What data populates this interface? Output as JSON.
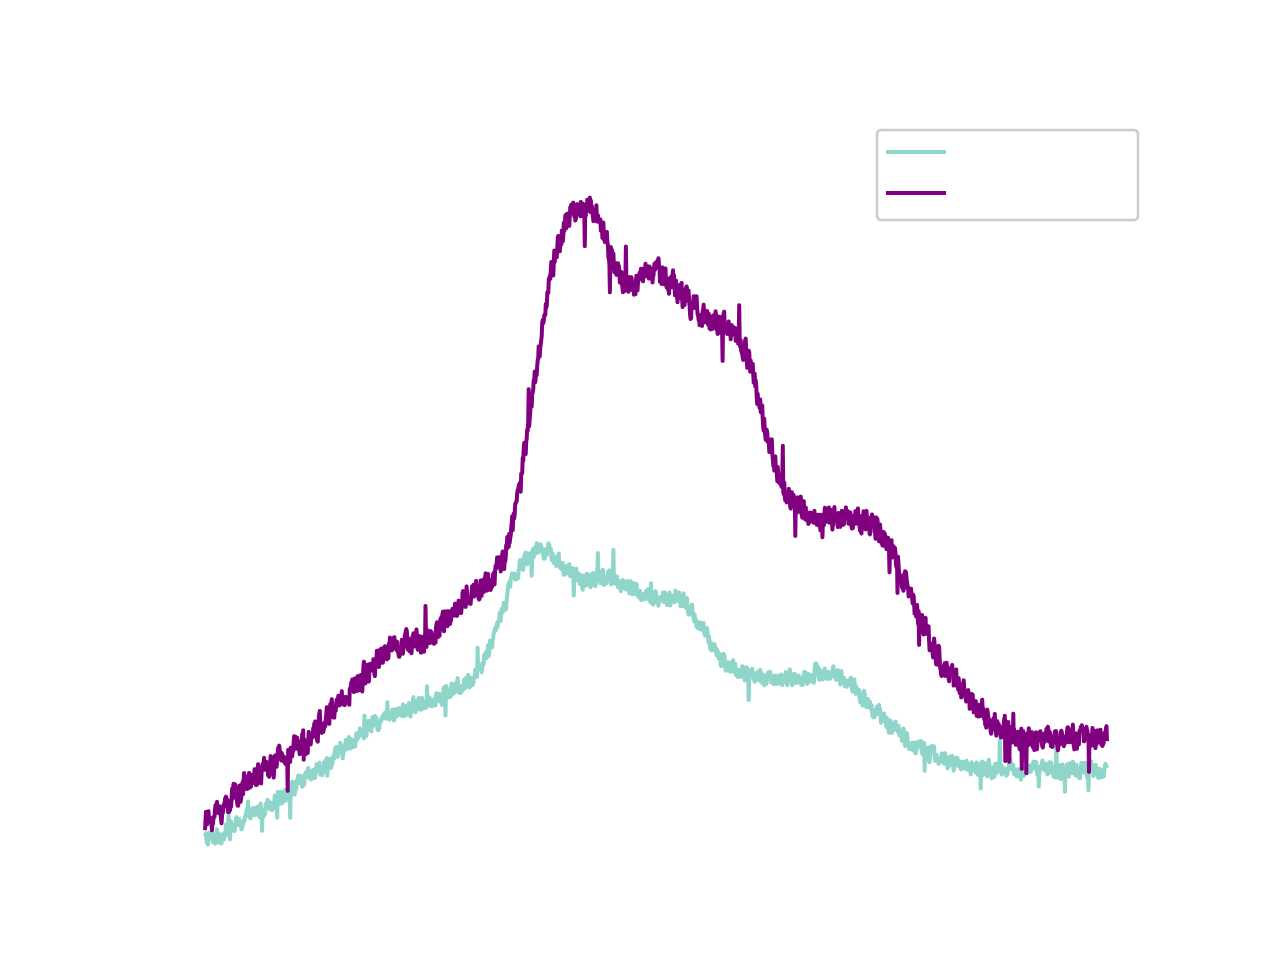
{
  "chart_data": {
    "type": "line",
    "title": "",
    "xlabel": "",
    "ylabel": "",
    "axes_visible": false,
    "grid": false,
    "legend_placement": "top-right",
    "xlim": [
      0,
      100
    ],
    "ylim": [
      0,
      100
    ],
    "x": [
      0,
      1,
      2,
      3,
      4,
      5,
      6,
      7,
      8,
      9,
      10,
      11,
      12,
      13,
      14,
      15,
      16,
      17,
      18,
      19,
      20,
      21,
      22,
      23,
      24,
      25,
      26,
      27,
      28,
      29,
      30,
      31,
      32,
      33,
      34,
      35,
      36,
      37,
      38,
      39,
      40,
      41,
      42,
      43,
      44,
      45,
      46,
      47,
      48,
      49,
      50,
      51,
      52,
      53,
      54,
      55,
      56,
      57,
      58,
      59,
      60,
      61,
      62,
      63,
      64,
      65,
      66,
      67,
      68,
      69,
      70,
      71,
      72,
      73,
      74,
      75,
      76,
      77,
      78,
      79,
      80,
      81,
      82,
      83,
      84,
      85,
      86,
      87,
      88,
      89,
      90,
      91,
      92,
      93,
      94,
      95,
      96,
      97,
      98,
      99,
      100
    ],
    "noise_amplitude": [
      1.6,
      2.4
    ],
    "series": [
      {
        "color": "#8fd5ca",
        "values": [
          5.2,
          5.5,
          6.0,
          6.7,
          7.4,
          8.2,
          9.0,
          9.8,
          10.5,
          11.3,
          12.0,
          12.8,
          13.6,
          14.5,
          15.5,
          16.5,
          17.6,
          18.6,
          19.5,
          20.2,
          20.8,
          21.3,
          21.8,
          22.3,
          22.8,
          23.3,
          23.8,
          24.3,
          24.8,
          25.5,
          26.5,
          28.5,
          31.5,
          35.0,
          38.3,
          40.8,
          42.2,
          42.7,
          42.6,
          41.5,
          40.0,
          39.0,
          38.6,
          38.8,
          39.2,
          39.0,
          38.5,
          37.8,
          37.1,
          36.5,
          36.2,
          36.3,
          36.5,
          35.9,
          34.5,
          32.6,
          30.6,
          29.0,
          27.8,
          27.0,
          26.5,
          26.2,
          26.0,
          26.0,
          26.0,
          26.0,
          26.2,
          26.5,
          26.8,
          26.8,
          26.5,
          25.8,
          24.8,
          23.5,
          22.2,
          21.0,
          20.0,
          19.0,
          18.0,
          17.2,
          16.5,
          16.0,
          15.5,
          15.0,
          14.8,
          14.6,
          14.5,
          14.4,
          14.3,
          14.3,
          14.2,
          14.2,
          14.2,
          14.2,
          14.2,
          14.2,
          14.2,
          14.2,
          14.2,
          14.2,
          14.2
        ]
      },
      {
        "color": "#800080",
        "values": [
          7.5,
          8.3,
          9.3,
          10.5,
          11.7,
          12.8,
          13.7,
          14.5,
          15.3,
          16.0,
          16.9,
          17.9,
          19.0,
          20.3,
          21.7,
          23.0,
          24.2,
          25.5,
          27.0,
          28.5,
          29.7,
          30.4,
          30.6,
          30.5,
          30.6,
          31.3,
          32.5,
          34.0,
          35.5,
          36.6,
          37.5,
          38.4,
          39.3,
          41.0,
          45.0,
          51.5,
          59.5,
          68.0,
          76.0,
          81.5,
          84.5,
          86.3,
          87.0,
          86.5,
          84.0,
          80.5,
          78.0,
          77.0,
          77.3,
          78.2,
          78.5,
          78.0,
          76.8,
          75.4,
          74.0,
          72.9,
          72.1,
          71.8,
          71.4,
          70.3,
          68.0,
          64.0,
          59.0,
          54.5,
          51.0,
          48.8,
          47.8,
          47.3,
          46.7,
          46.5,
          46.5,
          46.8,
          46.9,
          46.6,
          45.8,
          44.4,
          42.6,
          40.4,
          37.6,
          34.8,
          32.0,
          29.6,
          27.5,
          25.8,
          24.3,
          22.9,
          21.7,
          20.7,
          19.9,
          19.3,
          18.8,
          18.5,
          18.3,
          18.2,
          18.2,
          18.2,
          18.2,
          18.2,
          18.2,
          18.2,
          18.2
        ]
      }
    ]
  }
}
